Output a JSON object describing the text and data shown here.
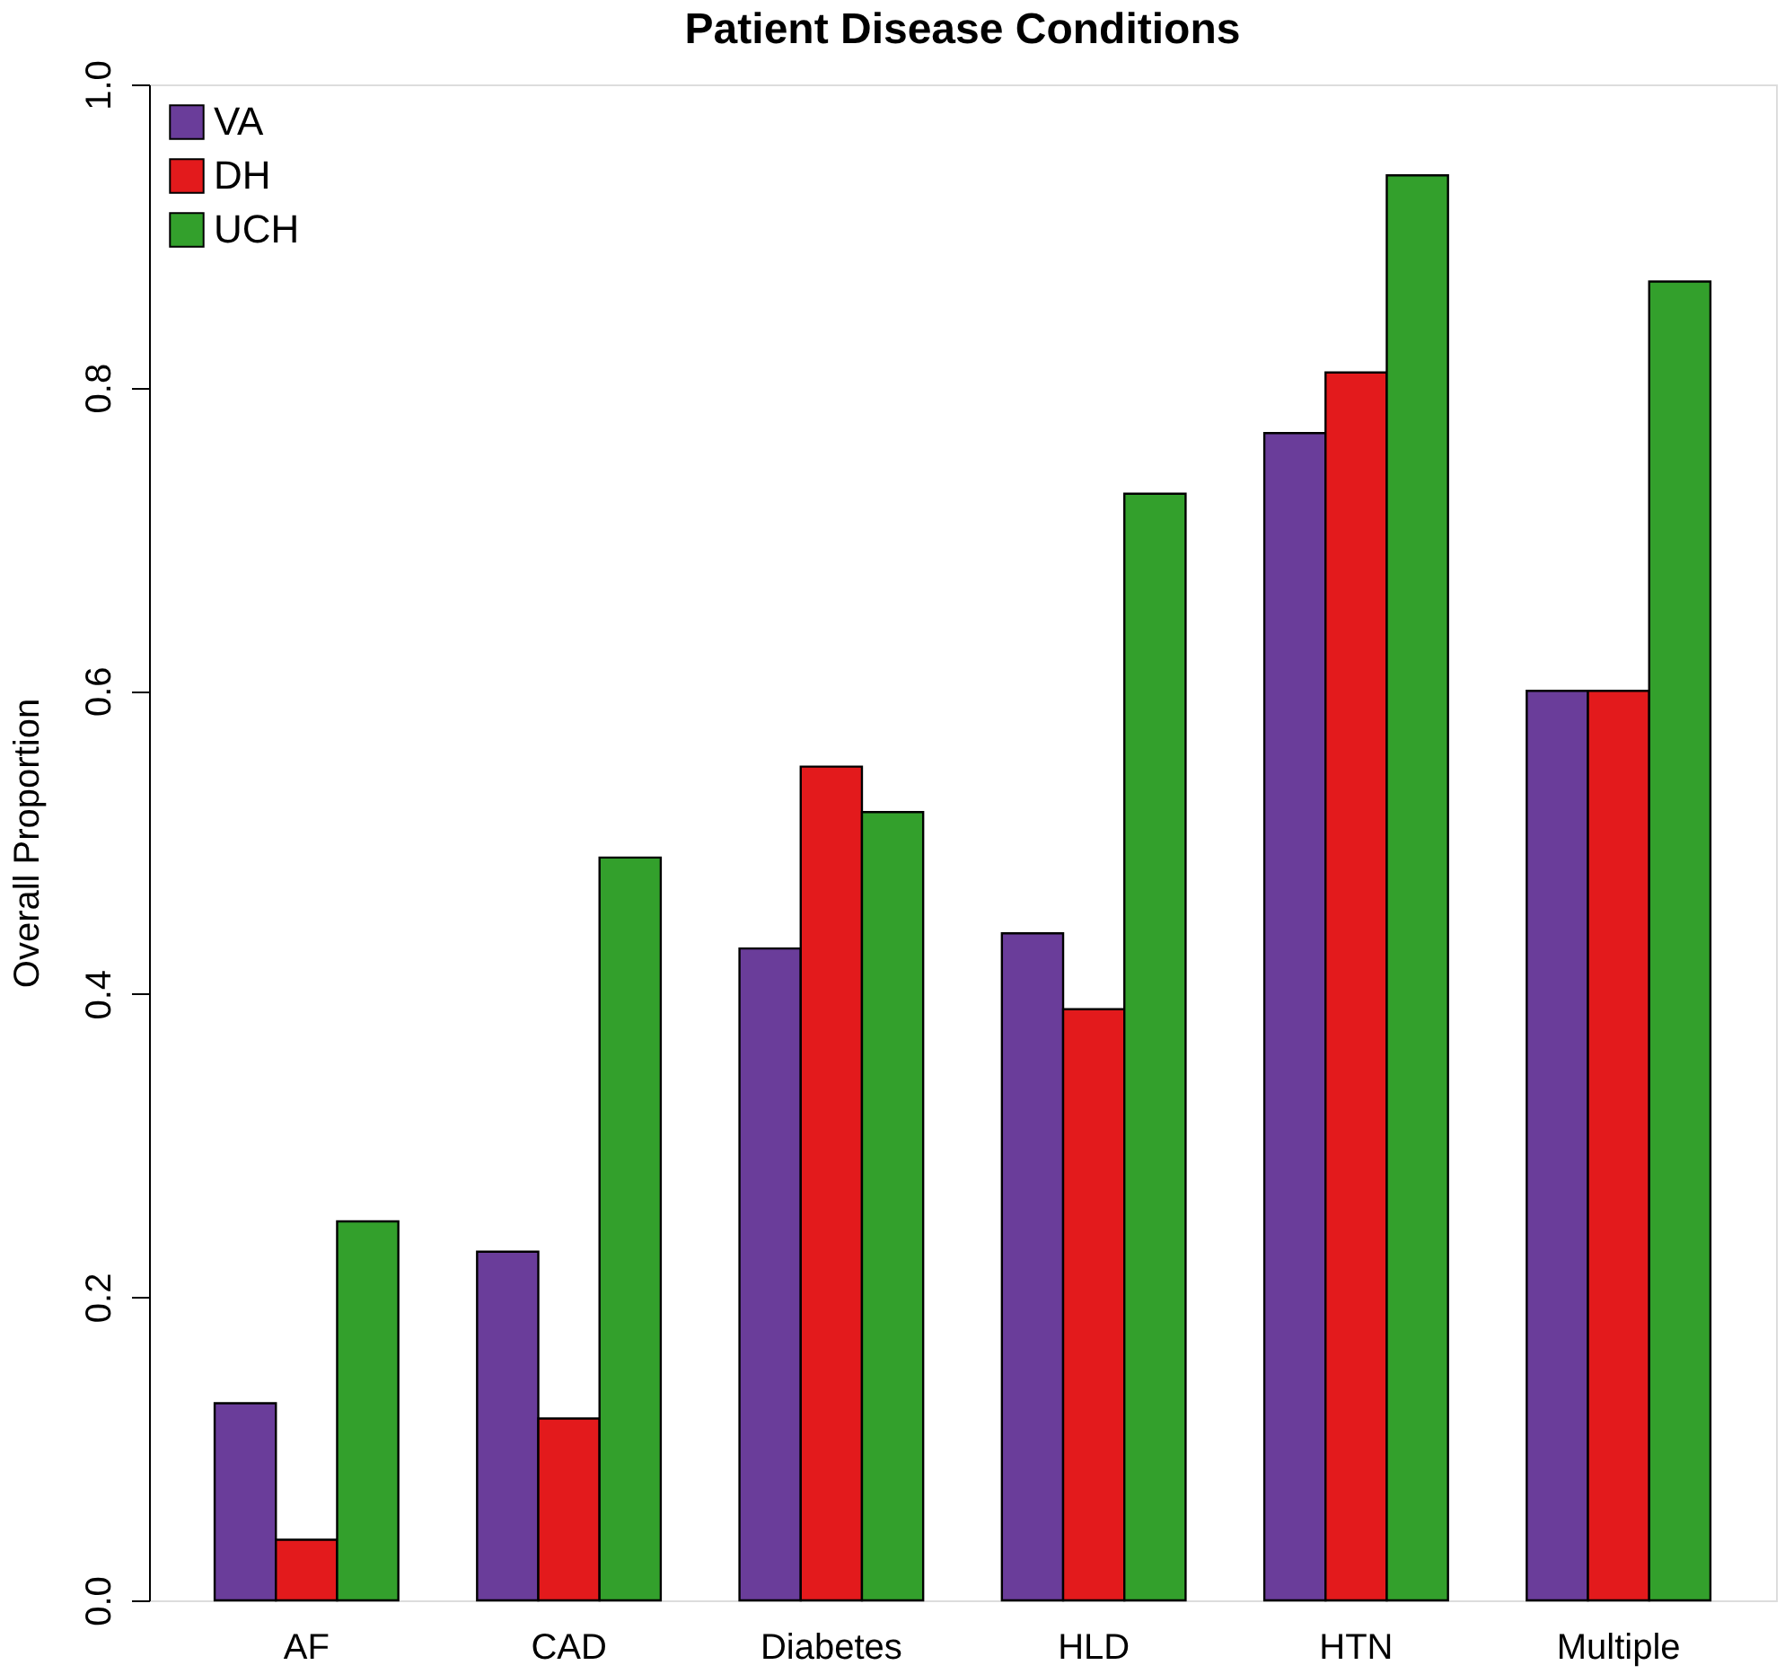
{
  "chart_data": {
    "type": "bar",
    "title": "Patient Disease Conditions",
    "ylabel": "Overall Proportion",
    "categories": [
      "AF",
      "CAD",
      "Diabetes",
      "HLD",
      "HTN",
      "Multiple"
    ],
    "series": [
      {
        "name": "VA",
        "color": "#6a3d9a",
        "values": [
          0.13,
          0.23,
          0.43,
          0.44,
          0.77,
          0.6
        ]
      },
      {
        "name": "DH",
        "color": "#e31a1c",
        "values": [
          0.04,
          0.12,
          0.55,
          0.39,
          0.81,
          0.6
        ]
      },
      {
        "name": "UCH",
        "color": "#33a02c",
        "values": [
          0.25,
          0.49,
          0.52,
          0.73,
          0.94,
          0.87
        ]
      }
    ],
    "ylim": [
      0,
      1
    ],
    "yticks": [
      {
        "value": 0,
        "label": "0.0"
      },
      {
        "value": 0.2,
        "label": "0.2"
      },
      {
        "value": 0.4,
        "label": "0.4"
      },
      {
        "value": 0.6,
        "label": "0.6"
      },
      {
        "value": 0.8,
        "label": "0.8"
      },
      {
        "value": 1,
        "label": "1.0"
      }
    ],
    "grid": false,
    "legend": "top left"
  }
}
